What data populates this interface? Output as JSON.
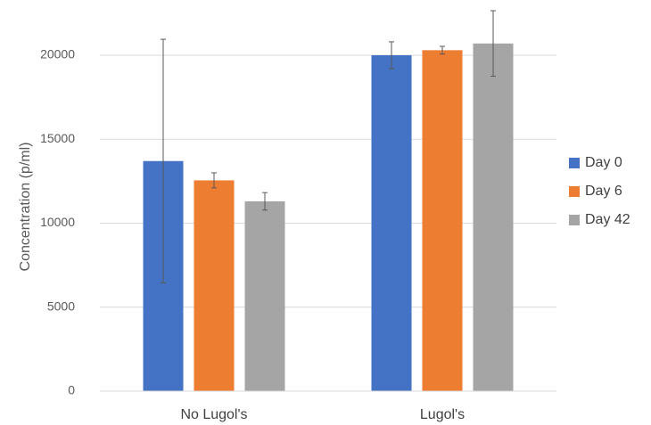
{
  "chart_data": {
    "type": "bar",
    "title": "",
    "xlabel": "",
    "ylabel": "Concentration (p/ml)",
    "ylim": [
      0,
      20000
    ],
    "yticks": [
      0,
      5000,
      10000,
      15000,
      20000
    ],
    "grid": true,
    "legend_position": "right",
    "categories": [
      "No Lugol's",
      "Lugol's"
    ],
    "series": [
      {
        "name": "Day 0",
        "color": "#4472c4",
        "values": [
          13700,
          20000
        ],
        "errors": [
          7250,
          800
        ]
      },
      {
        "name": "Day 6",
        "color": "#ed7d31",
        "values": [
          12550,
          20300
        ],
        "errors": [
          450,
          230
        ]
      },
      {
        "name": "Day 42",
        "color": "#a5a5a5",
        "values": [
          11300,
          20700
        ],
        "errors": [
          520,
          1950
        ]
      }
    ]
  }
}
